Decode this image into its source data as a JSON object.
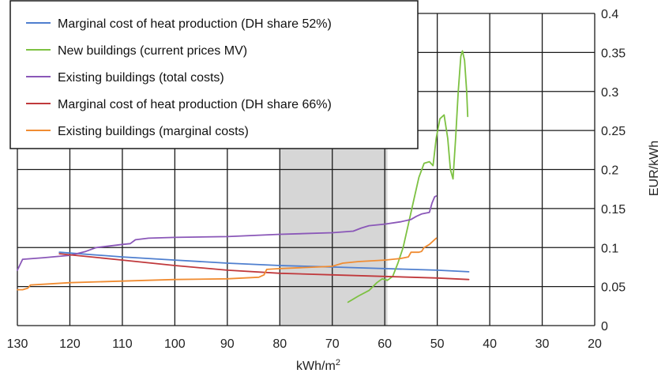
{
  "chart_data": {
    "type": "line",
    "xlabel": "kWh/m²",
    "ylabel": "EUR/kWh",
    "xlim": [
      130,
      20
    ],
    "ylim": [
      0,
      0.4
    ],
    "x_ticks": [
      130,
      120,
      110,
      100,
      90,
      80,
      70,
      60,
      50,
      40,
      30,
      20
    ],
    "y_ticks": [
      0,
      0.05,
      0.1,
      0.15,
      0.2,
      0.25,
      0.3,
      0.35,
      0.4
    ],
    "x_tick_labels": [
      "130",
      "120",
      "110",
      "100",
      "90",
      "80",
      "70",
      "60",
      "50",
      "40",
      "30",
      "20"
    ],
    "y_tick_labels": [
      "0",
      "0.05",
      "0.1",
      "0.15",
      "0.2",
      "0.25",
      "0.3",
      "0.35",
      "0.4"
    ],
    "grid": true,
    "legend_position": "top-left",
    "shaded_x_range": [
      80,
      59.5
    ],
    "series": [
      {
        "name": "Marginal cost of heat production (DH share 52%)",
        "color": "#4f7fcf",
        "points": [
          [
            122,
            0.094
          ],
          [
            110,
            0.088
          ],
          [
            100,
            0.084
          ],
          [
            90,
            0.08
          ],
          [
            80,
            0.077
          ],
          [
            70,
            0.075
          ],
          [
            60,
            0.073
          ],
          [
            50,
            0.071
          ],
          [
            44,
            0.069
          ]
        ]
      },
      {
        "name": "New buildings (current prices MV)",
        "color": "#7dc142",
        "points": [
          [
            67,
            0.03
          ],
          [
            65,
            0.038
          ],
          [
            63,
            0.045
          ],
          [
            61.5,
            0.055
          ],
          [
            60.5,
            0.06
          ],
          [
            59.5,
            0.058
          ],
          [
            58.5,
            0.063
          ],
          [
            57.5,
            0.08
          ],
          [
            56.5,
            0.1
          ],
          [
            55.5,
            0.13
          ],
          [
            54.5,
            0.16
          ],
          [
            53.5,
            0.19
          ],
          [
            52.5,
            0.208
          ],
          [
            51.5,
            0.21
          ],
          [
            50.8,
            0.205
          ],
          [
            50.2,
            0.24
          ],
          [
            49.5,
            0.265
          ],
          [
            48.7,
            0.27
          ],
          [
            48,
            0.24
          ],
          [
            47.5,
            0.2
          ],
          [
            47,
            0.188
          ],
          [
            46.5,
            0.24
          ],
          [
            46,
            0.3
          ],
          [
            45.5,
            0.345
          ],
          [
            45.2,
            0.352
          ],
          [
            44.8,
            0.34
          ],
          [
            44.4,
            0.3
          ],
          [
            44.2,
            0.268
          ]
        ]
      },
      {
        "name": "Existing buildings (total costs)",
        "color": "#8a57b8",
        "points": [
          [
            130,
            0.071
          ],
          [
            129,
            0.085
          ],
          [
            125,
            0.087
          ],
          [
            120,
            0.09
          ],
          [
            117,
            0.095
          ],
          [
            115,
            0.1
          ],
          [
            110,
            0.104
          ],
          [
            108.5,
            0.105
          ],
          [
            107.5,
            0.11
          ],
          [
            105,
            0.112
          ],
          [
            100,
            0.113
          ],
          [
            90,
            0.114
          ],
          [
            80,
            0.117
          ],
          [
            70,
            0.119
          ],
          [
            66,
            0.121
          ],
          [
            64.5,
            0.125
          ],
          [
            63,
            0.128
          ],
          [
            60,
            0.13
          ],
          [
            57,
            0.133
          ],
          [
            55,
            0.136
          ],
          [
            54,
            0.14
          ],
          [
            53,
            0.143
          ],
          [
            51.5,
            0.145
          ],
          [
            51,
            0.157
          ],
          [
            50.5,
            0.165
          ],
          [
            50.2,
            0.166
          ]
        ]
      },
      {
        "name": "Marginal cost of heat production (DH share 66%)",
        "color": "#c0393c",
        "points": [
          [
            122,
            0.092
          ],
          [
            110,
            0.084
          ],
          [
            100,
            0.077
          ],
          [
            90,
            0.071
          ],
          [
            80,
            0.067
          ],
          [
            70,
            0.065
          ],
          [
            60,
            0.063
          ],
          [
            50,
            0.061
          ],
          [
            44,
            0.059
          ]
        ]
      },
      {
        "name": "Existing buildings (marginal costs)",
        "color": "#f08c32",
        "points": [
          [
            130,
            0.046
          ],
          [
            129,
            0.046
          ],
          [
            128,
            0.048
          ],
          [
            127.5,
            0.052
          ],
          [
            125,
            0.053
          ],
          [
            120,
            0.055
          ],
          [
            110,
            0.057
          ],
          [
            100,
            0.059
          ],
          [
            90,
            0.06
          ],
          [
            84,
            0.062
          ],
          [
            83,
            0.065
          ],
          [
            82.5,
            0.072
          ],
          [
            80,
            0.073
          ],
          [
            70,
            0.076
          ],
          [
            68,
            0.08
          ],
          [
            65,
            0.082
          ],
          [
            60,
            0.084
          ],
          [
            57,
            0.086
          ],
          [
            55.5,
            0.088
          ],
          [
            55,
            0.094
          ],
          [
            53.5,
            0.094
          ],
          [
            53,
            0.095
          ],
          [
            52.5,
            0.1
          ],
          [
            51.5,
            0.104
          ],
          [
            50.2,
            0.112
          ]
        ]
      }
    ]
  }
}
